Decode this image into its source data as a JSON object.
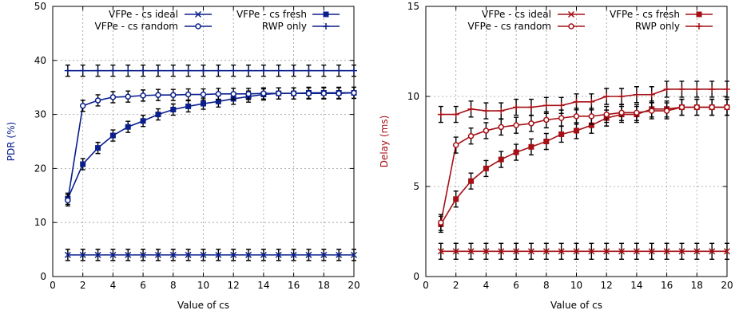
{
  "chart_data": [
    {
      "type": "line",
      "xlabel": "Value of cs",
      "ylabel": "PDR (%)",
      "xlim": [
        0,
        20
      ],
      "ylim": [
        0,
        50
      ],
      "xticks": [
        0,
        2,
        4,
        6,
        8,
        10,
        12,
        14,
        16,
        18,
        20
      ],
      "yticks": [
        0,
        10,
        20,
        30,
        40,
        50
      ],
      "grid": true,
      "legend_position": "top",
      "color": "#0a1f8c",
      "x": [
        1,
        2,
        3,
        4,
        5,
        6,
        7,
        8,
        9,
        10,
        11,
        12,
        13,
        14,
        15,
        16,
        17,
        18,
        19,
        20
      ],
      "series": [
        {
          "name": "VFPe - cs ideal",
          "marker": "x",
          "values": [
            4,
            4,
            4,
            4,
            4,
            4,
            4,
            4,
            4,
            4,
            4,
            4,
            4,
            4,
            4,
            4,
            4,
            4,
            4,
            4
          ]
        },
        {
          "name": "VFPe - cs fresh",
          "marker": "square",
          "values": [
            14.4,
            20.8,
            23.8,
            26.1,
            27.7,
            28.8,
            30.0,
            30.9,
            31.5,
            32.0,
            32.4,
            32.9,
            33.3,
            33.7,
            33.9,
            33.9,
            34.0,
            34.0,
            34.0,
            34.0
          ]
        },
        {
          "name": "VFPe - cs random",
          "marker": "circle",
          "values": [
            14.1,
            31.6,
            32.6,
            33.2,
            33.3,
            33.5,
            33.6,
            33.6,
            33.7,
            33.7,
            33.8,
            33.8,
            33.8,
            33.9,
            33.9,
            33.9,
            33.9,
            33.9,
            33.9,
            34.0
          ]
        },
        {
          "name": "RWP only",
          "marker": "plus",
          "values": [
            38.1,
            38.1,
            38.1,
            38.1,
            38.1,
            38.1,
            38.1,
            38.1,
            38.1,
            38.1,
            38.1,
            38.1,
            38.1,
            38.1,
            38.1,
            38.1,
            38.1,
            38.1,
            38.1,
            38.1
          ]
        }
      ]
    },
    {
      "type": "line",
      "xlabel": "Value of cs",
      "ylabel": "Delay (ms)",
      "xlim": [
        0,
        20
      ],
      "ylim": [
        0,
        15
      ],
      "xticks": [
        0,
        2,
        4,
        6,
        8,
        10,
        12,
        14,
        16,
        18,
        20
      ],
      "yticks": [
        0,
        5,
        10,
        15
      ],
      "grid": true,
      "legend_position": "top",
      "color": "#a50f15",
      "x": [
        1,
        2,
        3,
        4,
        5,
        6,
        7,
        8,
        9,
        10,
        11,
        12,
        13,
        14,
        15,
        16,
        17,
        18,
        19,
        20
      ],
      "series": [
        {
          "name": "VFPe - cs ideal",
          "marker": "x",
          "values": [
            1.4,
            1.4,
            1.4,
            1.4,
            1.4,
            1.4,
            1.4,
            1.4,
            1.4,
            1.4,
            1.4,
            1.4,
            1.4,
            1.4,
            1.4,
            1.4,
            1.4,
            1.4,
            1.4,
            1.4
          ]
        },
        {
          "name": "VFPe - cs fresh",
          "marker": "square",
          "values": [
            2.9,
            4.3,
            5.3,
            6.0,
            6.5,
            6.9,
            7.2,
            7.5,
            7.9,
            8.1,
            8.4,
            8.8,
            9.0,
            9.0,
            9.3,
            9.3,
            9.4,
            9.4,
            9.4,
            9.4
          ]
        },
        {
          "name": "VFPe - cs random",
          "marker": "circle",
          "values": [
            3.0,
            7.3,
            7.8,
            8.1,
            8.3,
            8.4,
            8.5,
            8.7,
            8.8,
            8.9,
            8.9,
            9.0,
            9.1,
            9.1,
            9.2,
            9.2,
            9.4,
            9.4,
            9.4,
            9.4
          ]
        },
        {
          "name": "RWP only",
          "marker": "plus",
          "values": [
            9.0,
            9.0,
            9.3,
            9.2,
            9.2,
            9.4,
            9.4,
            9.5,
            9.5,
            9.7,
            9.7,
            10.0,
            10.0,
            10.1,
            10.1,
            10.4,
            10.4,
            10.4,
            10.4,
            10.4
          ]
        }
      ]
    }
  ]
}
